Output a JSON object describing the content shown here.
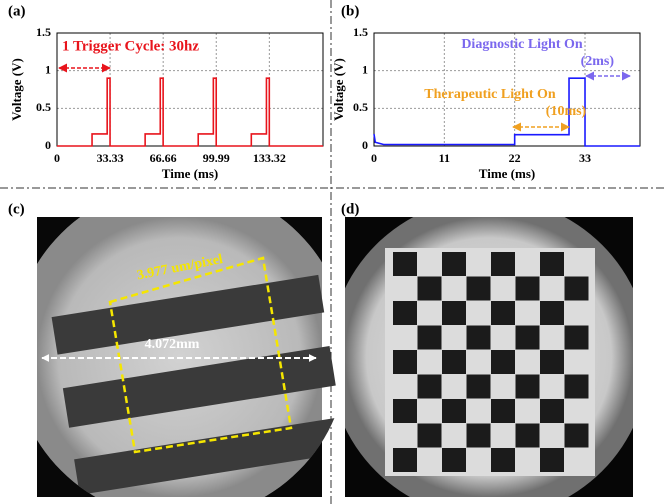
{
  "chart_data": [
    {
      "type": "line",
      "panel": "(a)",
      "xlabel": "Time (ms)",
      "ylabel": "Voltage (V)",
      "annotations": [
        "1 Trigger Cycle: 30hz"
      ],
      "x": [
        0,
        22,
        22,
        31.5,
        31.5,
        33.3,
        33.3,
        55.33,
        55.33,
        64.83,
        64.83,
        66.63,
        66.63,
        88.66,
        88.66,
        98.16,
        98.16,
        99.96,
        99.96,
        121.99,
        121.99,
        131.49,
        131.49,
        133.29,
        133.29,
        167
      ],
      "series": [
        {
          "color": "#e8141c",
          "values": [
            0,
            0,
            0.16,
            0.16,
            0.9,
            0.9,
            0,
            0,
            0.16,
            0.16,
            0.9,
            0.9,
            0,
            0,
            0.16,
            0.16,
            0.9,
            0.9,
            0,
            0,
            0.16,
            0.16,
            0.9,
            0.9,
            0,
            0
          ]
        }
      ],
      "xlim": [
        0,
        167
      ],
      "ylim": [
        0,
        1.5
      ],
      "xticks": [
        0,
        33.33,
        66.66,
        99.99,
        133.32
      ],
      "yticks": [
        0,
        0.5,
        1,
        1.5
      ],
      "grid": true
    },
    {
      "type": "line",
      "panel": "(b)",
      "xlabel": "Time (ms)",
      "ylabel": "Voltage (V)",
      "annotations": [
        "Diagnostic Light On",
        "(2ms)",
        "Therapeutic Light On",
        "(10ms)"
      ],
      "x": [
        0,
        0.2,
        1.5,
        22,
        22,
        30.5,
        30.5,
        33,
        33,
        41.6
      ],
      "series": [
        {
          "color": "#1a1aff",
          "values": [
            0.16,
            0.05,
            0.02,
            0.02,
            0.15,
            0.15,
            0.9,
            0.9,
            0,
            0
          ]
        }
      ],
      "xlim": [
        0,
        41.6
      ],
      "ylim": [
        0,
        1.5
      ],
      "xticks": [
        0,
        11,
        22,
        33
      ],
      "yticks": [
        0,
        0.5,
        1,
        1.5
      ],
      "grid": true
    }
  ],
  "images": [
    {
      "label": "(c)",
      "annotations": [
        "3.977 um/pixel",
        "4.072mm"
      ]
    },
    {
      "label": "(d)"
    }
  ]
}
